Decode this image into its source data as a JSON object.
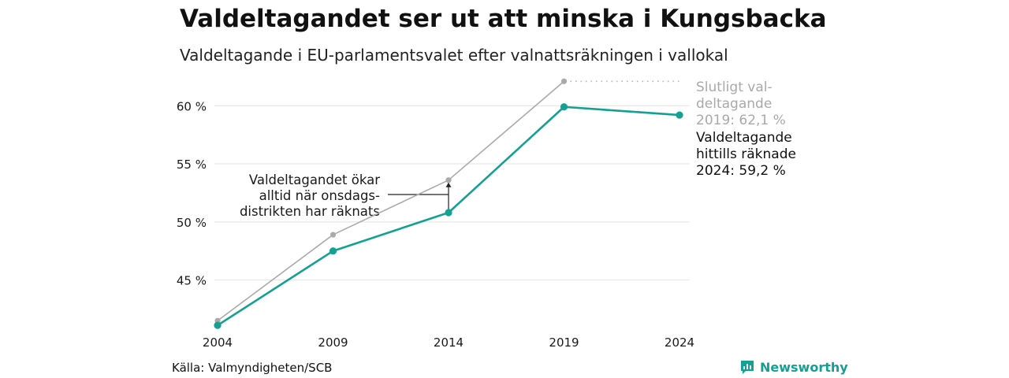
{
  "title": "Valdeltagandet ser ut att minska i Kungsbacka",
  "subtitle": "Valdeltagande i EU-parlamentsvalet efter valnattsräkningen i vallokal",
  "source": "Källa: Valmyndigheten/SCB",
  "brand": {
    "name": "Newsworthy",
    "icon": "newsworthy-logo-icon"
  },
  "colors": {
    "counted": "#14a093",
    "final": "#aaaaaa",
    "grid": "#e3e3e3",
    "text": "#1a1a1a"
  },
  "chart_data": {
    "type": "line",
    "x": [
      "2004",
      "2009",
      "2014",
      "2019",
      "2024"
    ],
    "series": [
      {
        "name": "Slutligt valdeltagande",
        "color": "#aaaaaa",
        "values": [
          41.5,
          48.9,
          53.6,
          62.1,
          null
        ]
      },
      {
        "name": "Valdeltagande hittills räknade",
        "color": "#14a093",
        "values": [
          41.1,
          47.5,
          50.8,
          59.9,
          59.2
        ]
      }
    ],
    "yticks": [
      45,
      50,
      55,
      60
    ],
    "ytick_labels": [
      "45 %",
      "50 %",
      "55 %",
      "60 %"
    ],
    "ylim": [
      40.5,
      63
    ],
    "grid": true,
    "annotations": {
      "final_label": [
        "Slutligt val-",
        "deltagande",
        "2019: 62,1 %"
      ],
      "counted_label": [
        "Valdeltagande",
        "hittills räknade",
        "2024: 59,2 %"
      ],
      "gap_note": [
        "Valdeltagandet ökar",
        "alltid när onsdags-",
        "distrikten har räknats"
      ]
    }
  }
}
